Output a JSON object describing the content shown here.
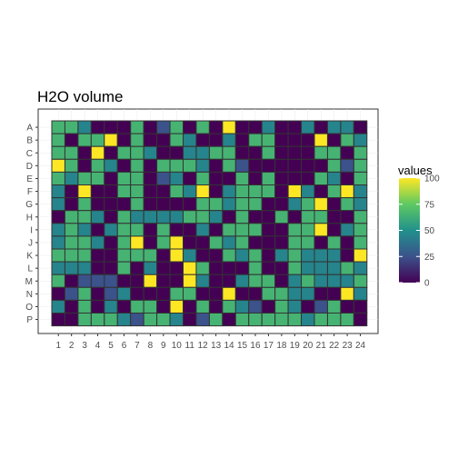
{
  "chart_data": {
    "type": "heatmap",
    "title": "H2O volume",
    "rows": [
      "A",
      "B",
      "C",
      "D",
      "E",
      "F",
      "G",
      "H",
      "I",
      "J",
      "K",
      "L",
      "M",
      "N",
      "O",
      "P"
    ],
    "columns": [
      "1",
      "2",
      "3",
      "4",
      "5",
      "6",
      "7",
      "8",
      "9",
      "10",
      "11",
      "12",
      "13",
      "14",
      "15",
      "16",
      "17",
      "18",
      "19",
      "20",
      "21",
      "22",
      "23",
      "24"
    ],
    "legend": {
      "title": "values",
      "ticks": [
        0,
        25,
        50,
        75,
        100
      ],
      "range": [
        0,
        100
      ],
      "position": "right",
      "colormap": "viridis"
    },
    "grid": true,
    "values": [
      [
        65,
        65,
        45,
        0,
        0,
        0,
        65,
        0,
        25,
        65,
        0,
        65,
        0,
        100,
        0,
        0,
        45,
        0,
        0,
        45,
        0,
        45,
        45,
        0
      ],
      [
        65,
        0,
        65,
        65,
        100,
        0,
        65,
        0,
        0,
        65,
        45,
        0,
        0,
        45,
        0,
        65,
        65,
        0,
        0,
        0,
        100,
        0,
        65,
        45
      ],
      [
        65,
        65,
        0,
        100,
        0,
        65,
        65,
        45,
        0,
        0,
        45,
        45,
        65,
        65,
        0,
        0,
        65,
        0,
        0,
        0,
        65,
        65,
        0,
        65
      ],
      [
        100,
        65,
        0,
        65,
        45,
        0,
        65,
        0,
        65,
        65,
        65,
        45,
        0,
        65,
        25,
        0,
        0,
        0,
        0,
        0,
        0,
        65,
        25,
        65
      ],
      [
        65,
        45,
        65,
        65,
        0,
        65,
        65,
        0,
        25,
        45,
        0,
        65,
        0,
        0,
        65,
        0,
        65,
        0,
        0,
        0,
        65,
        45,
        0,
        65
      ],
      [
        45,
        0,
        100,
        0,
        0,
        65,
        65,
        0,
        0,
        65,
        45,
        100,
        0,
        45,
        65,
        65,
        65,
        0,
        100,
        45,
        0,
        65,
        100,
        45
      ],
      [
        45,
        0,
        65,
        0,
        0,
        0,
        65,
        0,
        0,
        0,
        0,
        65,
        65,
        45,
        65,
        65,
        0,
        0,
        45,
        65,
        100,
        0,
        65,
        45
      ],
      [
        0,
        65,
        65,
        45,
        0,
        65,
        45,
        45,
        45,
        45,
        65,
        65,
        45,
        0,
        65,
        0,
        0,
        65,
        0,
        65,
        65,
        0,
        0,
        65
      ],
      [
        45,
        65,
        45,
        0,
        45,
        65,
        65,
        0,
        65,
        0,
        0,
        45,
        0,
        65,
        65,
        65,
        0,
        0,
        65,
        65,
        100,
        0,
        45,
        65
      ],
      [
        45,
        65,
        65,
        45,
        0,
        65,
        100,
        0,
        65,
        100,
        0,
        0,
        65,
        45,
        65,
        0,
        0,
        0,
        65,
        65,
        0,
        65,
        0,
        65
      ],
      [
        65,
        65,
        65,
        0,
        0,
        65,
        65,
        65,
        0,
        100,
        45,
        0,
        0,
        65,
        45,
        65,
        0,
        45,
        65,
        45,
        45,
        45,
        0,
        100
      ],
      [
        45,
        45,
        45,
        0,
        0,
        65,
        0,
        45,
        0,
        0,
        100,
        65,
        0,
        0,
        0,
        65,
        0,
        0,
        65,
        45,
        45,
        45,
        65,
        45
      ],
      [
        65,
        0,
        25,
        25,
        25,
        0,
        0,
        100,
        0,
        0,
        100,
        45,
        0,
        0,
        45,
        65,
        65,
        0,
        45,
        65,
        45,
        45,
        45,
        65
      ],
      [
        0,
        25,
        65,
        0,
        25,
        45,
        0,
        0,
        0,
        65,
        65,
        0,
        0,
        100,
        0,
        0,
        65,
        65,
        45,
        45,
        0,
        0,
        100,
        45
      ],
      [
        45,
        0,
        65,
        0,
        45,
        0,
        65,
        65,
        0,
        100,
        0,
        65,
        0,
        65,
        45,
        25,
        0,
        65,
        45,
        0,
        25,
        65,
        0,
        0
      ],
      [
        0,
        0,
        65,
        65,
        65,
        45,
        25,
        65,
        65,
        45,
        0,
        25,
        65,
        0,
        65,
        65,
        65,
        65,
        65,
        45,
        65,
        65,
        65,
        0
      ]
    ]
  }
}
